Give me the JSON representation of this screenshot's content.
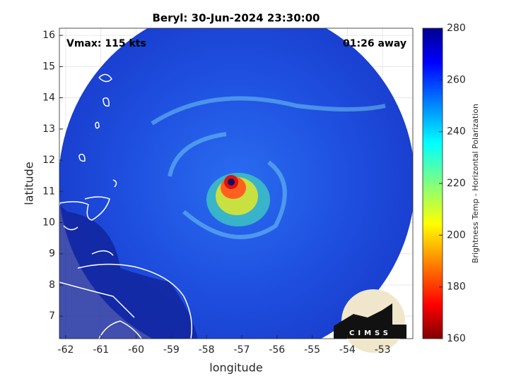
{
  "chart_data": {
    "type": "map",
    "title": "Beryl: 30-Jun-2024 23:30:00",
    "xlabel": "longitude",
    "ylabel": "latitude",
    "xlim": [
      -62.18,
      -52.14
    ],
    "ylim": [
      6.28,
      16.23
    ],
    "xticks": [
      -62,
      -61,
      -60,
      -59,
      -58,
      -57,
      -56,
      -55,
      -54,
      -53
    ],
    "yticks": [
      7,
      8,
      9,
      10,
      11,
      12,
      13,
      14,
      15,
      16
    ],
    "grid": true,
    "annotations": [
      "Vmax: 115 kts",
      "01:26 away"
    ],
    "storm_center": {
      "lon": -57.3,
      "lat": 11.3
    },
    "colorbar": {
      "label": "Brightness Temp - Horizontal Polarization",
      "lim": [
        160,
        280
      ],
      "ticks": [
        160,
        180,
        200,
        220,
        240,
        260,
        280
      ],
      "colormap": "jet"
    },
    "logo": "CIMSS"
  }
}
